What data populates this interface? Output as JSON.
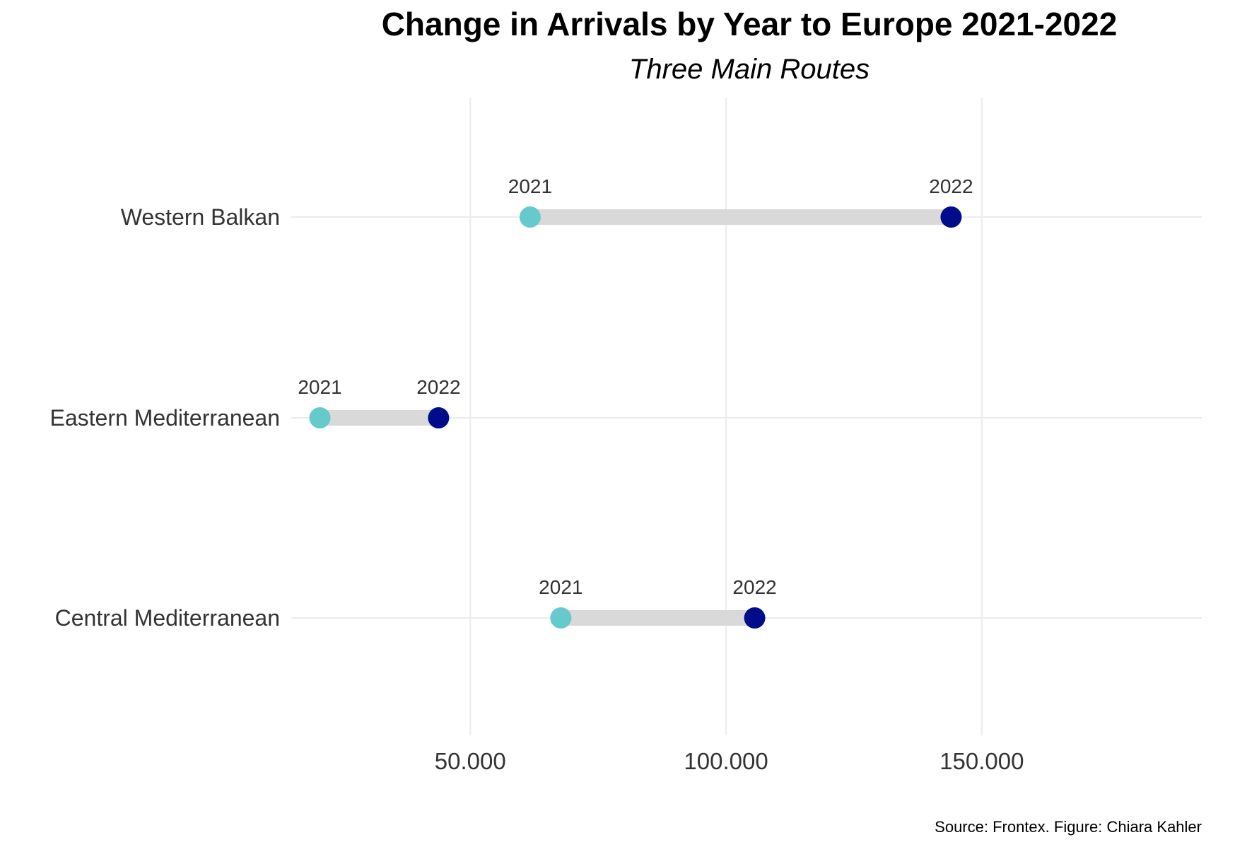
{
  "chart_data": {
    "type": "dumbbell",
    "title": "Change in Arrivals by Year to Europe 2021-2022",
    "subtitle": "Three Main Routes",
    "caption": "Source: Frontex. Figure: Chiara Kahler",
    "xlabel": "",
    "ylabel": "",
    "xlim": [
      15000,
      193000
    ],
    "x_ticks": [
      50000,
      100000,
      150000
    ],
    "x_tick_labels": [
      "50.000",
      "100.000",
      "150.000"
    ],
    "grid": true,
    "legend": "none",
    "categories": [
      "Western Balkan",
      "Eastern Mediterranean",
      "Central Mediterranean"
    ],
    "series": [
      {
        "name": "2021",
        "color": "#66c9cb",
        "values": [
          61700,
          20600,
          67700
        ]
      },
      {
        "name": "2022",
        "color": "#000c8a",
        "values": [
          144000,
          43800,
          105600
        ]
      }
    ],
    "segment_color": "#d9d9d9"
  }
}
